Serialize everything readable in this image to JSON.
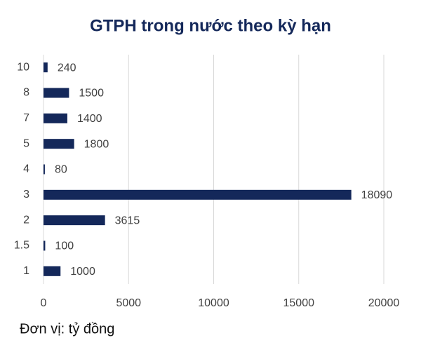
{
  "chart_data": {
    "type": "barh",
    "title": "GTPH trong nước theo kỳ hạn",
    "categories": [
      "1",
      "1.5",
      "2",
      "3",
      "4",
      "5",
      "7",
      "8",
      "10"
    ],
    "values": [
      1000,
      100,
      3615,
      18090,
      80,
      1800,
      1400,
      1500,
      240
    ],
    "color": "#14285a",
    "xlim": [
      0,
      20000
    ],
    "xticks": [
      0,
      5000,
      10000,
      15000,
      20000
    ],
    "grid": true
  },
  "note": "Đơn vị: tỷ đồng"
}
